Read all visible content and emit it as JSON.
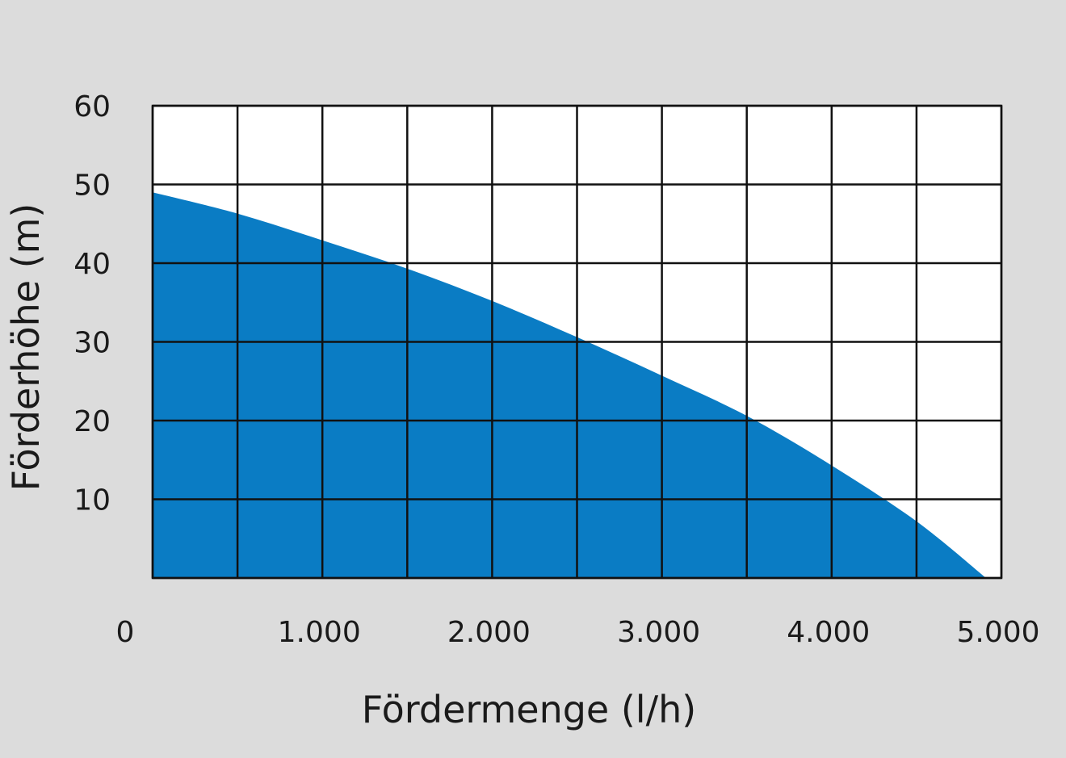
{
  "chart_data": {
    "type": "area",
    "title": "",
    "xlabel": "Fördermenge (l/h)",
    "ylabel": "Förderhöhe (m)",
    "xlim": [
      0,
      5000
    ],
    "ylim": [
      0,
      60
    ],
    "grid": true,
    "x_grid_step": 500,
    "y_grid_step": 10,
    "x_ticks": [
      0,
      1000,
      2000,
      3000,
      4000,
      5000
    ],
    "x_tick_labels": [
      "0",
      "1.000",
      "2.000",
      "3.000",
      "4.000",
      "5.000"
    ],
    "y_ticks": [
      10,
      20,
      30,
      40,
      50,
      60
    ],
    "y_tick_labels": [
      "10",
      "20",
      "30",
      "40",
      "50",
      "60"
    ],
    "x": [
      0,
      500,
      1000,
      1500,
      2000,
      2500,
      3000,
      3500,
      4000,
      4500,
      4910
    ],
    "y": [
      49.0,
      46.3,
      42.9,
      39.3,
      35.2,
      30.6,
      25.7,
      20.6,
      14.3,
      7.2,
      0
    ],
    "colors": {
      "fill": "#0a7cc4",
      "background": "#dcdcdc",
      "plot": "#ffffff",
      "grid": "#111111"
    }
  }
}
